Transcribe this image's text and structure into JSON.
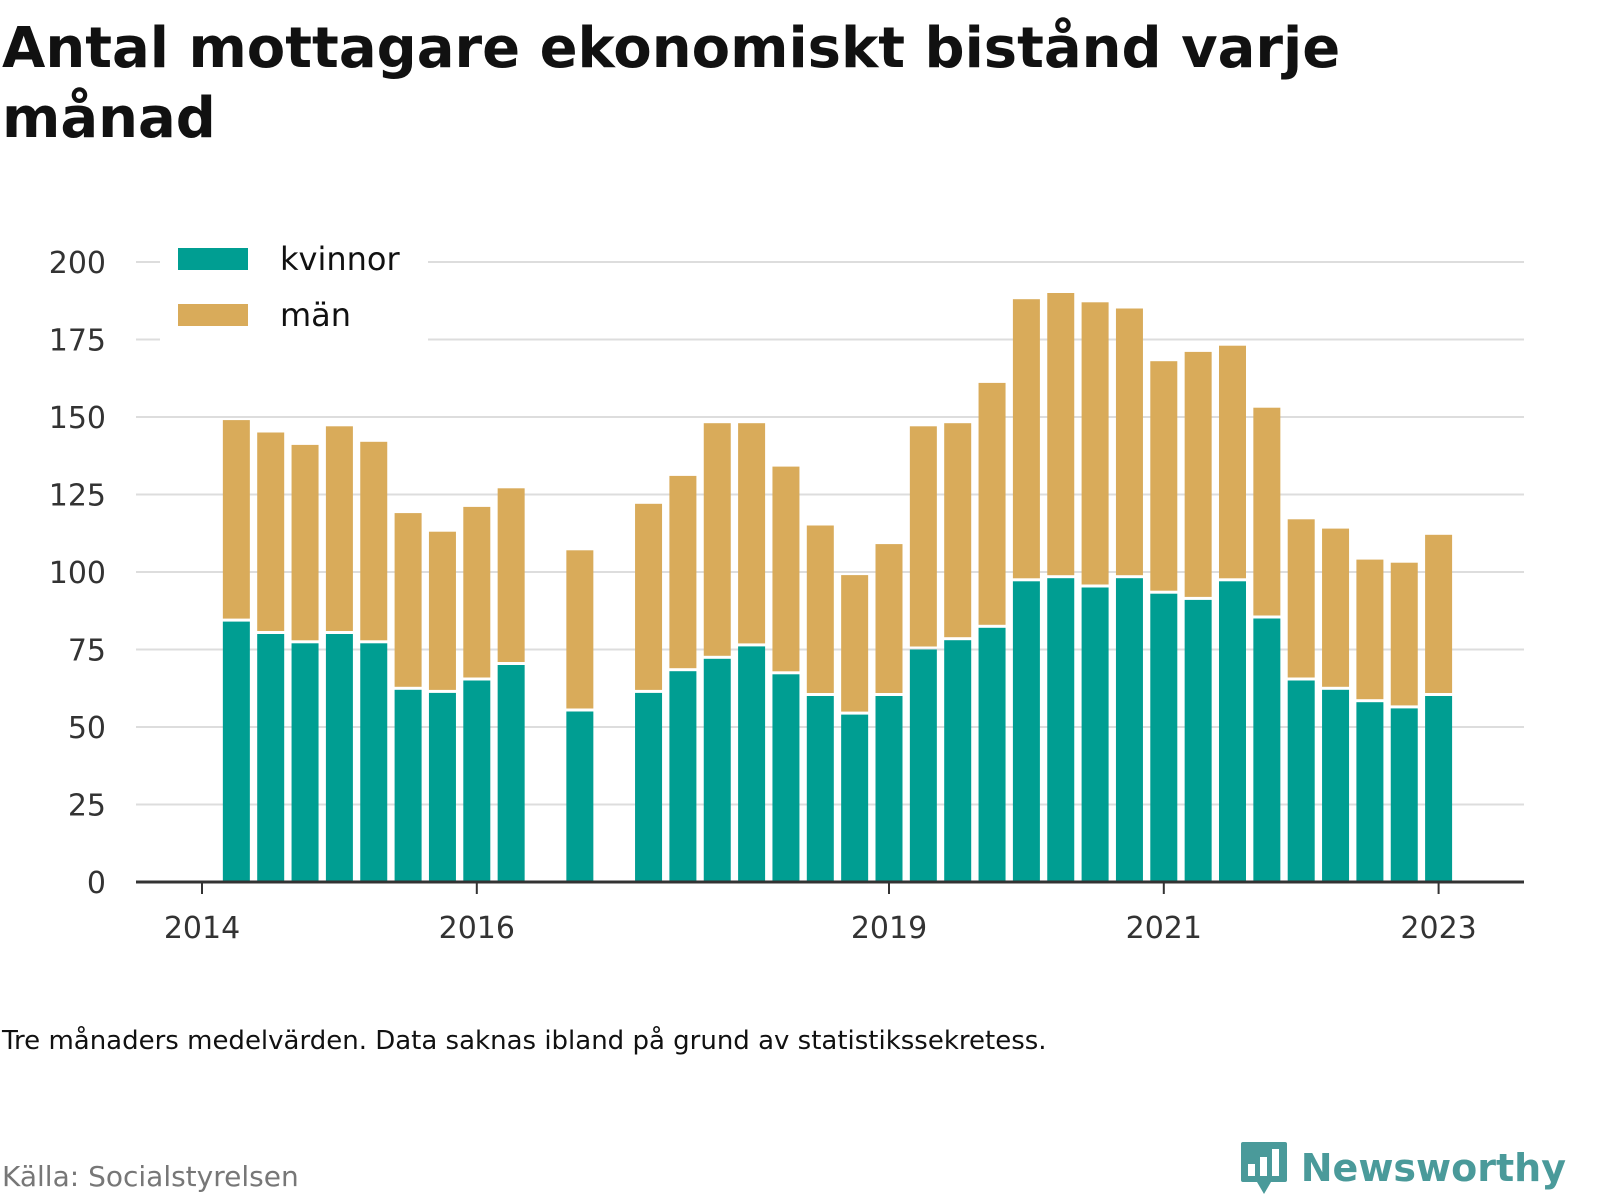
{
  "title": "Antal mottagare ekonomiskt bistånd varje månad",
  "note": "Tre månaders medelvärden. Data saknas ibland på grund av statistikssekretess.",
  "source": "Källa: Socialstyrelsen",
  "brand": "Newsworthy",
  "colors": {
    "kvinnor": "#009e92",
    "man": "#d9ab5a",
    "grid": "#dddddd",
    "axis": "#333333"
  },
  "chart_data": {
    "type": "bar",
    "stacked": true,
    "xlabel": "",
    "ylabel": "",
    "ylim": [
      0,
      200
    ],
    "yticks": [
      0,
      25,
      50,
      75,
      100,
      125,
      150,
      175,
      200
    ],
    "xticks": [
      {
        "label": "2014",
        "period": 0
      },
      {
        "label": "2016",
        "period": 8
      },
      {
        "label": "2019",
        "period": 20
      },
      {
        "label": "2021",
        "period": 28
      },
      {
        "label": "2023",
        "period": 36
      }
    ],
    "grid": true,
    "legend": "top-left",
    "periods": 37,
    "series": [
      {
        "name": "kvinnor",
        "color": "#009e92",
        "values": [
          null,
          84,
          80,
          77,
          80,
          77,
          62,
          61,
          65,
          70,
          null,
          55,
          null,
          61,
          68,
          72,
          76,
          67,
          60,
          54,
          60,
          75,
          78,
          82,
          97,
          98,
          95,
          98,
          93,
          91,
          97,
          85,
          65,
          62,
          58,
          56,
          60
        ]
      },
      {
        "name": "män",
        "color": "#d9ab5a",
        "values": [
          null,
          65,
          65,
          64,
          67,
          65,
          57,
          52,
          56,
          57,
          null,
          52,
          null,
          61,
          63,
          76,
          72,
          67,
          55,
          45,
          49,
          72,
          70,
          79,
          91,
          92,
          92,
          87,
          75,
          80,
          76,
          68,
          52,
          52,
          46,
          47,
          52
        ]
      }
    ]
  }
}
